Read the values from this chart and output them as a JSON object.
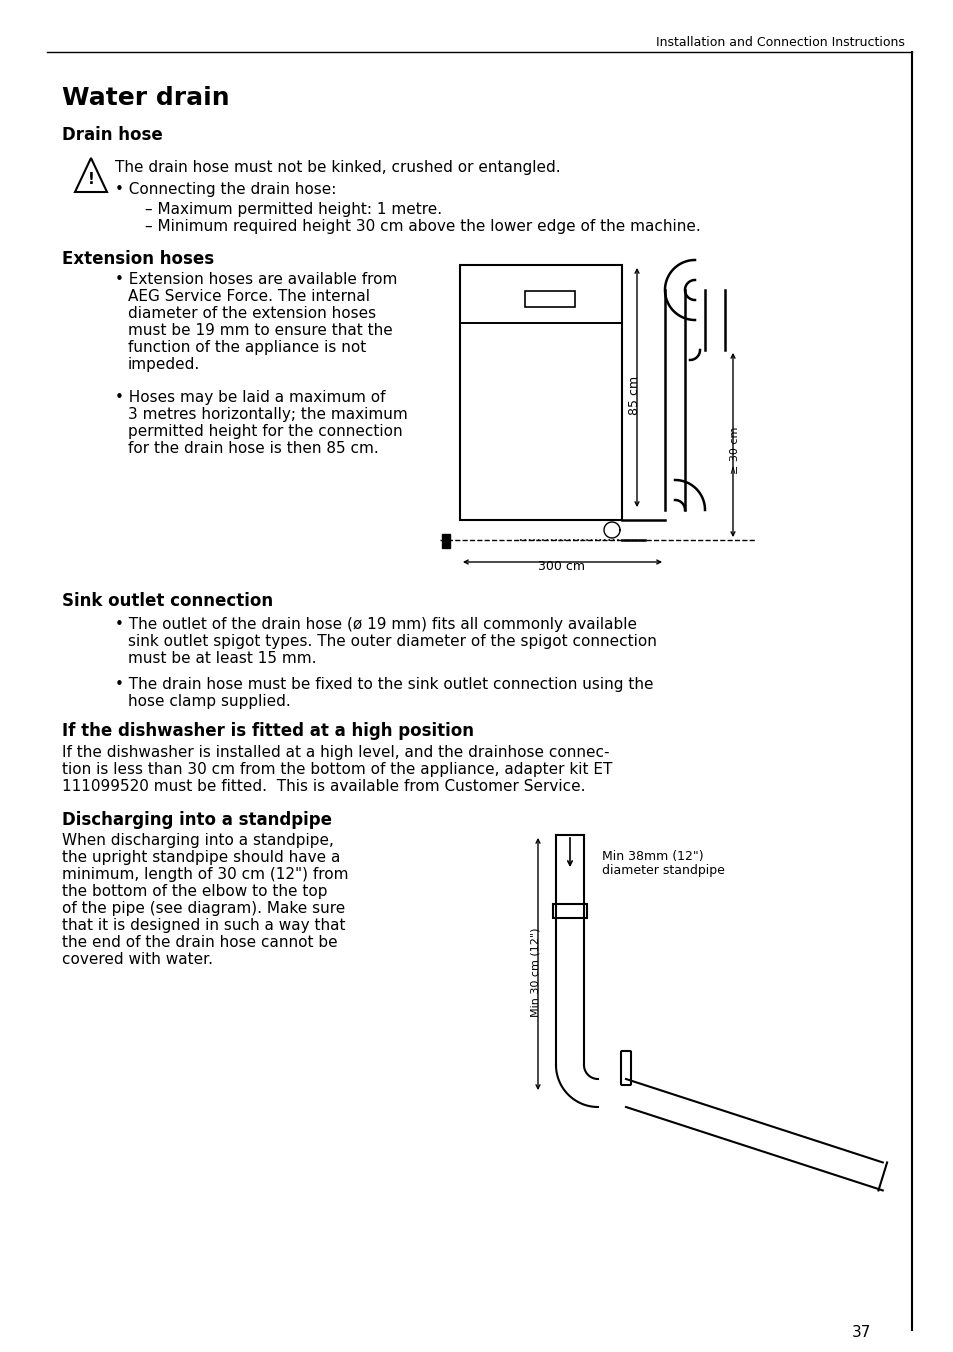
{
  "header_text": "Installation and Connection Instructions",
  "page_number": "37",
  "title": "Water drain",
  "section1_title": "Drain hose",
  "warning_text": "The drain hose must not be kinked, crushed or entangled.",
  "drain_hose_bullet": "Connecting the drain hose:",
  "drain_hose_sub1": "– Maximum permitted height: 1 metre.",
  "drain_hose_sub2": "– Minimum required height 30 cm above the lower edge of the machine.",
  "section2_title": "Extension hoses",
  "ext_b1": [
    "Extension hoses are available from",
    "AEG Service Force. The internal",
    "diameter of the extension hoses",
    "must be 19 mm to ensure that the",
    "function of the appliance is not",
    "impeded."
  ],
  "ext_b2": [
    "Hoses may be laid a maximum of",
    "3 metres horizontally; the maximum",
    "permitted height for the connection",
    "for the drain hose is then 85 cm."
  ],
  "diag1_85cm": "85 cm",
  "diag1_30cm": "≥ 30 cm",
  "diag1_300cm": "300 cm",
  "section3_title": "Sink outlet connection",
  "sink_b1": [
    "The outlet of the drain hose (ø 19 mm) fits all commonly available",
    "sink outlet spigot types. The outer diameter of the spigot connection",
    "must be at least 15 mm."
  ],
  "sink_b2": [
    "The drain hose must be fixed to the sink outlet connection using the",
    "hose clamp supplied."
  ],
  "section4_title": "If the dishwasher is fitted at a high position",
  "section4_body": [
    "If the dishwasher is installed at a high level, and the drainhose connec-",
    "tion is less than 30 cm from the bottom of the appliance, adapter kit ET",
    "111099520 must be fitted.  This is available from Customer Service."
  ],
  "section5_title": "Discharging into a standpipe",
  "standpipe_body": [
    "When discharging into a standpipe,",
    "the upright standpipe should have a",
    "minimum, length of 30 cm (12\") from",
    "the bottom of the elbow to the top",
    "of the pipe (see diagram). Make sure",
    "that it is designed in such a way that",
    "the end of the drain hose cannot be",
    "covered with water."
  ],
  "diag2_min38": "Min 38mm (12\")",
  "diag2_standpipe": "diameter standpipe",
  "diag2_min30": "Min 30 cm (12\")",
  "bg_color": "#ffffff",
  "text_color": "#000000"
}
